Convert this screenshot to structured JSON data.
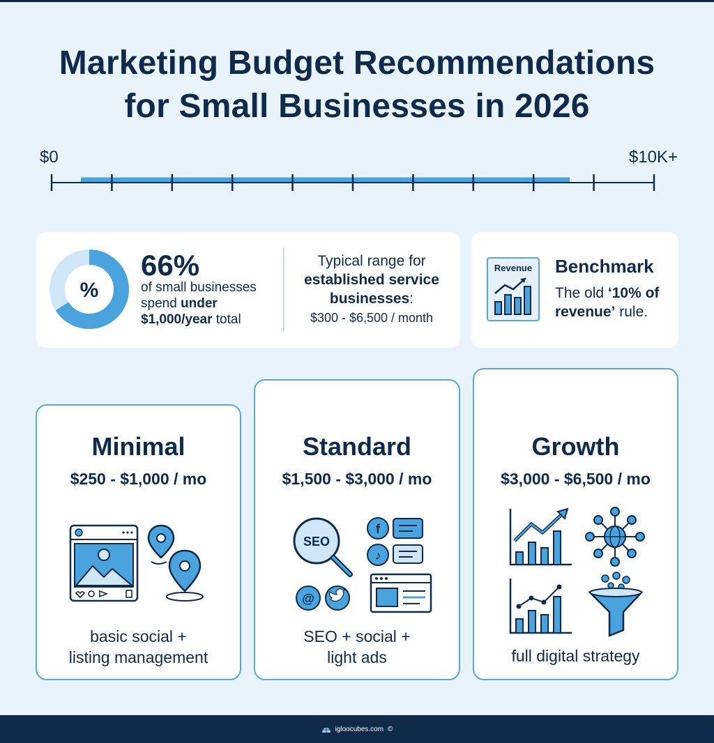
{
  "title": {
    "line1": "Marketing Budget Recommendations",
    "line2": "for Small Businesses in 2026"
  },
  "scale": {
    "min_label": "$0",
    "max_label": "$10K+",
    "tick_count": 11,
    "fill_fraction": 0.86
  },
  "stat": {
    "big": "66%",
    "donut_symbol": "%",
    "donut_fraction": 0.66,
    "desc_pre": "of small businesses spend ",
    "desc_bold1": "under",
    "desc_bold2": "$1,000/year",
    "desc_post": " total",
    "range_line1": "Typical range for",
    "range_bold": "established service businesses",
    "range_colon": ":",
    "range_value": "$300 - $6,500 / month"
  },
  "benchmark": {
    "icon_label": "Revenue",
    "title": "Benchmark",
    "desc_pre": "The old ",
    "desc_bold": "‘10% of revenue’",
    "desc_post": " rule."
  },
  "tiers": [
    {
      "name": "Minimal",
      "price": "$250 - $1,000 / mo",
      "desc_line1": "basic social +",
      "desc_line2": "listing management",
      "icons": [
        "social-post-icon",
        "map-pin-icon"
      ]
    },
    {
      "name": "Standard",
      "price": "$1,500 - $3,000 / mo",
      "desc_line1": "SEO + social +",
      "desc_line2": "light ads",
      "seo_label": "SEO",
      "icons": [
        "seo-magnifier-icon",
        "facebook-icon",
        "tiktok-icon",
        "threads-icon",
        "twitter-icon",
        "chat-bubble-icon",
        "web-ad-icon"
      ]
    },
    {
      "name": "Growth",
      "price": "$3,000 - $6,500 / mo",
      "desc_line1": "full digital strategy",
      "icons": [
        "growth-chart-icon",
        "network-globe-icon",
        "line-bar-chart-icon",
        "funnel-icon"
      ]
    }
  ],
  "footer": {
    "site": "igloocubes.com",
    "copyright": "©"
  },
  "colors": {
    "navy": "#0f2a4a",
    "accent": "#4aa3dc",
    "light": "#cfe6f6",
    "background": "#e8f3fc"
  }
}
